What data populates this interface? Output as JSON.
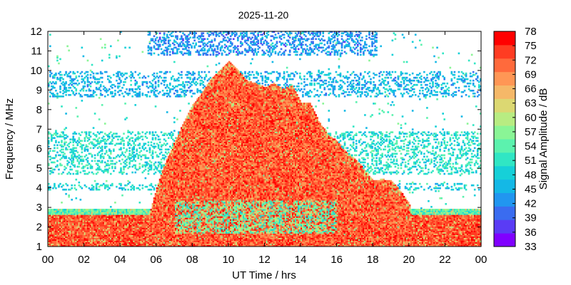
{
  "chart_data": {
    "type": "heatmap",
    "title": "2025-11-20",
    "xlabel": "UT Time / hrs",
    "ylabel": "Frequency / MHz",
    "colorbar_label": "Signal Amplitude / dB",
    "xlim": [
      0,
      24
    ],
    "ylim": [
      1,
      12
    ],
    "x_ticks": [
      "00",
      "02",
      "04",
      "06",
      "08",
      "10",
      "12",
      "14",
      "16",
      "18",
      "20",
      "22",
      "00"
    ],
    "y_ticks": [
      "1",
      "2",
      "3",
      "4",
      "5",
      "6",
      "7",
      "8",
      "9",
      "10",
      "11",
      "12"
    ],
    "colorbar_ticks": [
      "33",
      "36",
      "39",
      "42",
      "45",
      "48",
      "51",
      "54",
      "57",
      "60",
      "63",
      "66",
      "69",
      "72",
      "75",
      "78"
    ],
    "color_range": [
      33,
      78
    ],
    "grid": false,
    "palette": [
      "#8000ff",
      "#5a3cf5",
      "#3a6cf0",
      "#2196f0",
      "#14b8e6",
      "#16d0d8",
      "#30e6c4",
      "#5cf2ae",
      "#8af596",
      "#b8ec82",
      "#dcd872",
      "#f5b868",
      "#ff9655",
      "#ff6a3c",
      "#ff3c22",
      "#ff0000"
    ],
    "upper_envelope_mhz": {
      "time_h": [
        5.5,
        6.0,
        6.5,
        7.0,
        7.5,
        8.0,
        8.5,
        9.0,
        9.5,
        10.0,
        10.5,
        11.0,
        11.5,
        12.0,
        12.5,
        13.0,
        13.5,
        14.0,
        14.5,
        15.0,
        15.5,
        16.0,
        16.5,
        17.0,
        17.5,
        18.0,
        18.5,
        19.0,
        19.5,
        20.0,
        20.2
      ],
      "freq_mhz": [
        2.2,
        4.0,
        5.3,
        6.3,
        7.3,
        8.2,
        8.8,
        9.5,
        10.0,
        10.4,
        10.0,
        9.4,
        9.3,
        9.1,
        9.3,
        9.0,
        9.2,
        8.3,
        8.3,
        7.3,
        6.7,
        6.3,
        5.8,
        5.4,
        4.9,
        4.3,
        4.4,
        4.3,
        3.8,
        3.1,
        2.0
      ]
    },
    "night_band_mhz": [
      1.0,
      2.9
    ],
    "noise_bands_mhz": [
      {
        "range": [
          8.6,
          9.9
        ],
        "level_db": 45
      },
      {
        "range": [
          4.6,
          6.8
        ],
        "level_db": 50
      },
      {
        "range": [
          3.8,
          4.2
        ],
        "level_db": 48
      },
      {
        "range": [
          10.7,
          12.0
        ],
        "level_db": 42
      }
    ]
  }
}
